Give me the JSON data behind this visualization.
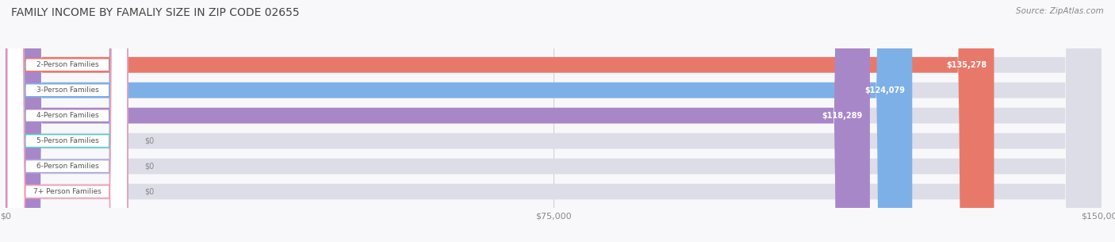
{
  "title": "FAMILY INCOME BY FAMALIY SIZE IN ZIP CODE 02655",
  "source": "Source: ZipAtlas.com",
  "categories": [
    "2-Person Families",
    "3-Person Families",
    "4-Person Families",
    "5-Person Families",
    "6-Person Families",
    "7+ Person Families"
  ],
  "values": [
    135278,
    124079,
    118289,
    0,
    0,
    0
  ],
  "bar_colors": [
    "#E8796A",
    "#7EB0E8",
    "#A887C9",
    "#5ECEC4",
    "#A8A8D8",
    "#F0A0B8"
  ],
  "value_labels": [
    "$135,278",
    "$124,079",
    "$118,289",
    "$0",
    "$0",
    "$0"
  ],
  "xlim": [
    0,
    150000
  ],
  "xtick_values": [
    0,
    75000,
    150000
  ],
  "xtick_labels": [
    "$0",
    "$75,000",
    "$150,000"
  ],
  "title_fontsize": 10,
  "source_fontsize": 7.5,
  "bar_height": 0.62,
  "figsize": [
    14.06,
    3.05
  ]
}
